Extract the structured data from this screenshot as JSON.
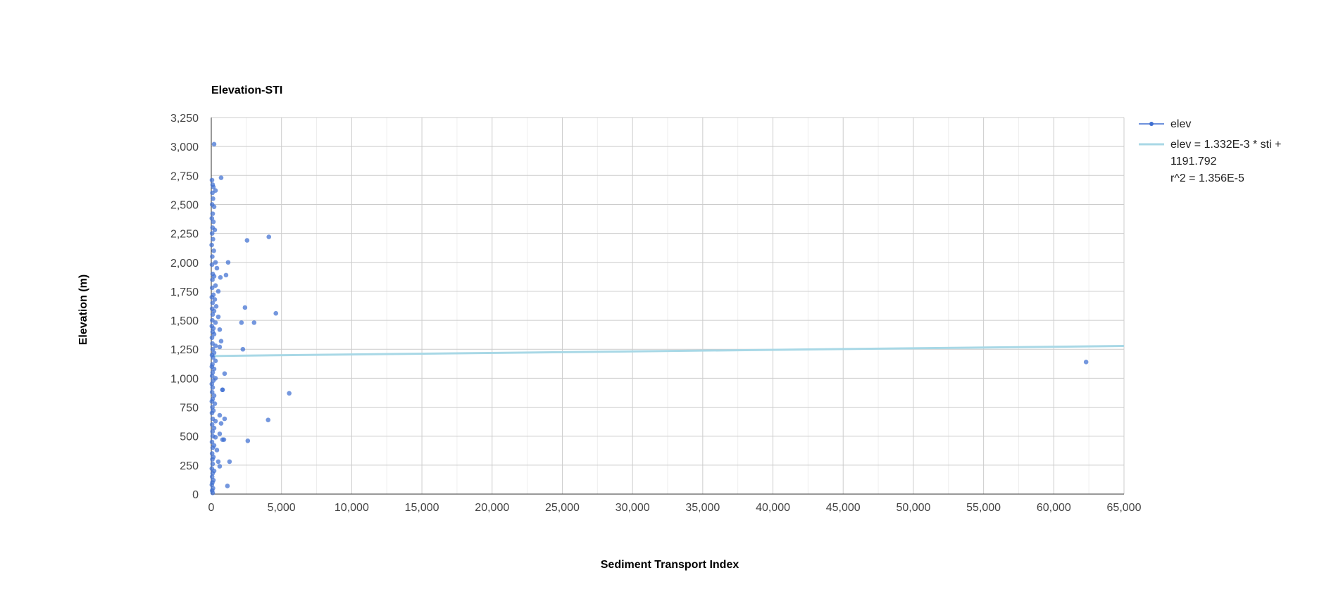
{
  "chart_data": {
    "type": "scatter",
    "title": "Elevation-STI",
    "xlabel": "Sediment Transport Index",
    "ylabel": "Elevation (m)",
    "xlim": [
      0,
      65000
    ],
    "ylim": [
      0,
      3250
    ],
    "x_ticks": [
      0,
      5000,
      10000,
      15000,
      20000,
      25000,
      30000,
      35000,
      40000,
      45000,
      50000,
      55000,
      60000,
      65000
    ],
    "x_tick_labels": [
      "0",
      "5,000",
      "10,000",
      "15,000",
      "20,000",
      "25,000",
      "30,000",
      "35,000",
      "40,000",
      "45,000",
      "50,000",
      "55,000",
      "60,000",
      "65,000"
    ],
    "y_ticks": [
      0,
      250,
      500,
      750,
      1000,
      1250,
      1500,
      1750,
      2000,
      2250,
      2500,
      2750,
      3000,
      3250
    ],
    "y_tick_labels": [
      "0",
      "250",
      "500",
      "750",
      "1,000",
      "1,250",
      "1,500",
      "1,750",
      "2,000",
      "2,250",
      "2,500",
      "2,750",
      "3,000",
      "3,250"
    ],
    "grid": true,
    "legend_position": "right",
    "series": [
      {
        "name": "elev",
        "kind": "scatter",
        "color": "#3f6fd1",
        "points": [
          [
            200,
            3020
          ],
          [
            700,
            2730
          ],
          [
            300,
            2620
          ],
          [
            50,
            2710
          ],
          [
            100,
            2670
          ],
          [
            150,
            2650
          ],
          [
            80,
            2600
          ],
          [
            120,
            2550
          ],
          [
            60,
            2500
          ],
          [
            200,
            2480
          ],
          [
            100,
            2420
          ],
          [
            40,
            2380
          ],
          [
            150,
            2350
          ],
          [
            90,
            2300
          ],
          [
            250,
            2280
          ],
          [
            60,
            2250
          ],
          [
            120,
            2200
          ],
          [
            30,
            2150
          ],
          [
            180,
            2100
          ],
          [
            70,
            2050
          ],
          [
            300,
            2000
          ],
          [
            50,
            1980
          ],
          [
            400,
            1950
          ],
          [
            100,
            1900
          ],
          [
            200,
            1880
          ],
          [
            80,
            1850
          ],
          [
            300,
            1800
          ],
          [
            60,
            1780
          ],
          [
            500,
            1750
          ],
          [
            150,
            1720
          ],
          [
            40,
            1700
          ],
          [
            250,
            1680
          ],
          [
            90,
            1650
          ],
          [
            350,
            1620
          ],
          [
            60,
            1600
          ],
          [
            200,
            1580
          ],
          [
            100,
            1550
          ],
          [
            500,
            1530
          ],
          [
            70,
            1500
          ],
          [
            300,
            1480
          ],
          [
            40,
            1450
          ],
          [
            150,
            1430
          ],
          [
            600,
            1420
          ],
          [
            100,
            1400
          ],
          [
            200,
            1380
          ],
          [
            50,
            1350
          ],
          [
            700,
            1320
          ],
          [
            80,
            1300
          ],
          [
            300,
            1280
          ],
          [
            600,
            1270
          ],
          [
            100,
            1250
          ],
          [
            200,
            1220
          ],
          [
            50,
            1200
          ],
          [
            120,
            1180
          ],
          [
            300,
            1150
          ],
          [
            80,
            1120
          ],
          [
            40,
            1100
          ],
          [
            200,
            1080
          ],
          [
            100,
            1050
          ],
          [
            60,
            1020
          ],
          [
            300,
            1000
          ],
          [
            150,
            980
          ],
          [
            40,
            950
          ],
          [
            100,
            920
          ],
          [
            800,
            900
          ],
          [
            60,
            880
          ],
          [
            200,
            850
          ],
          [
            100,
            820
          ],
          [
            40,
            800
          ],
          [
            250,
            780
          ],
          [
            80,
            750
          ],
          [
            150,
            720
          ],
          [
            50,
            700
          ],
          [
            600,
            680
          ],
          [
            100,
            650
          ],
          [
            300,
            630
          ],
          [
            700,
            610
          ],
          [
            60,
            600
          ],
          [
            200,
            570
          ],
          [
            90,
            540
          ],
          [
            600,
            520
          ],
          [
            100,
            500
          ],
          [
            300,
            490
          ],
          [
            900,
            470
          ],
          [
            50,
            450
          ],
          [
            200,
            420
          ],
          [
            100,
            400
          ],
          [
            400,
            380
          ],
          [
            60,
            350
          ],
          [
            150,
            320
          ],
          [
            80,
            300
          ],
          [
            500,
            280
          ],
          [
            100,
            260
          ],
          [
            600,
            240
          ],
          [
            40,
            220
          ],
          [
            200,
            200
          ],
          [
            100,
            180
          ],
          [
            60,
            150
          ],
          [
            150,
            120
          ],
          [
            80,
            100
          ],
          [
            40,
            80
          ],
          [
            120,
            50
          ],
          [
            60,
            30
          ],
          [
            100,
            10
          ],
          [
            4100,
            2220
          ],
          [
            2550,
            2190
          ],
          [
            1200,
            2000
          ],
          [
            650,
            1870
          ],
          [
            1050,
            1890
          ],
          [
            2400,
            1610
          ],
          [
            4600,
            1560
          ],
          [
            3050,
            1480
          ],
          [
            2150,
            1480
          ],
          [
            2250,
            1250
          ],
          [
            950,
            1040
          ],
          [
            5550,
            870
          ],
          [
            800,
            900
          ],
          [
            4050,
            640
          ],
          [
            950,
            650
          ],
          [
            2600,
            460
          ],
          [
            800,
            470
          ],
          [
            1300,
            280
          ],
          [
            1150,
            70
          ],
          [
            62300,
            1140
          ]
        ]
      },
      {
        "name": "elev = 1.332E-3 * sti + 1191.792",
        "kind": "trendline",
        "color": "#a8d8e6",
        "slope": 0.001332,
        "intercept": 1191.792,
        "r2_label": "r^2 = 1.356E-5"
      }
    ],
    "legend": [
      {
        "label": "elev"
      },
      {
        "label_line1": "elev = 1.332E-3 * sti +",
        "label_line2": "1191.792",
        "label_line3": "r^2 = 1.356E-5"
      }
    ]
  }
}
